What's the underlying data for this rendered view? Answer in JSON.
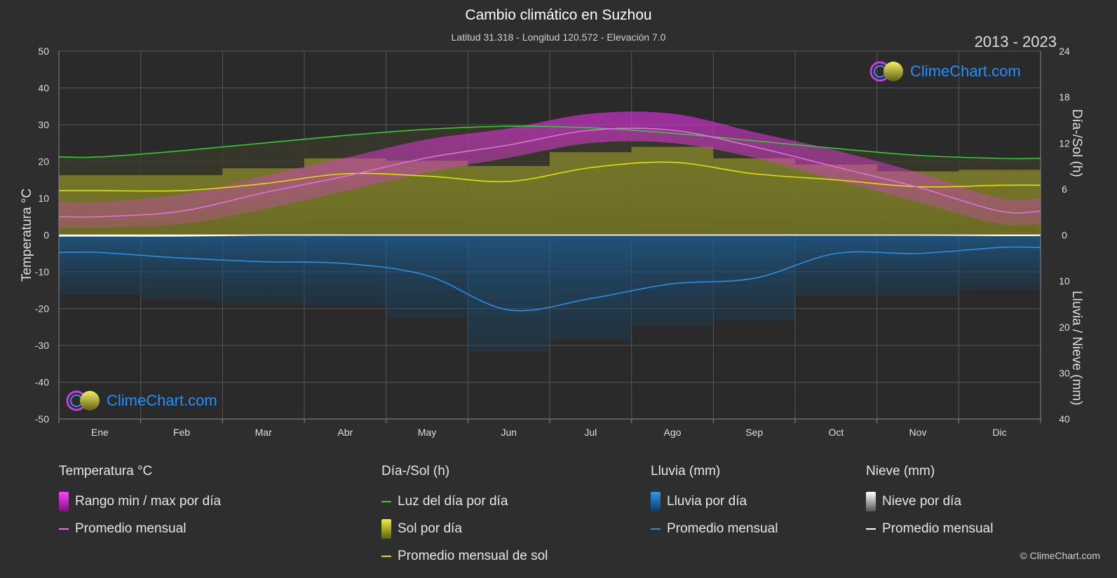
{
  "header": {
    "title": "Cambio climático en Suzhou",
    "subtitle": "Latitud 31.318 - Longitud 120.572 - Elevación 7.0",
    "years": "2013 - 2023"
  },
  "brand": {
    "logo_text": "ClimeChart.com",
    "copyright": "© ClimeChart.com"
  },
  "chart_data": {
    "type": "area",
    "categories": [
      "Ene",
      "Feb",
      "Mar",
      "Abr",
      "May",
      "Jun",
      "Jul",
      "Ago",
      "Sep",
      "Oct",
      "Nov",
      "Dic"
    ],
    "left_axis": {
      "label": "Temperatura °C",
      "range": [
        -50,
        50
      ],
      "ticks": [
        50,
        40,
        30,
        20,
        10,
        0,
        -10,
        -20,
        -30,
        -40,
        -50
      ]
    },
    "right_axis_top": {
      "label": "Día-/Sol (h)",
      "range": [
        0,
        24
      ],
      "ticks": [
        24,
        18,
        12,
        6,
        0
      ]
    },
    "right_axis_bottom": {
      "label": "Lluvia / Nieve (mm)",
      "range": [
        0,
        40
      ],
      "ticks": [
        0,
        10,
        20,
        30,
        40
      ]
    },
    "grid": true,
    "series": [
      {
        "name": "Promedio mensual",
        "group": "Temperatura °C",
        "axis": "temperature",
        "color": "#e070e0",
        "values": [
          5.0,
          6.5,
          11.5,
          16.0,
          21.0,
          24.5,
          28.5,
          28.5,
          24.0,
          18.5,
          13.0,
          6.5
        ]
      },
      {
        "name": "Rango min / max por día",
        "group": "Temperatura °C",
        "axis": "temperature",
        "color": "#d020d0",
        "min": [
          2,
          3,
          7,
          12,
          17,
          21,
          25,
          25,
          21,
          15,
          9,
          3
        ],
        "max": [
          9,
          11,
          16,
          21,
          26,
          29,
          33,
          33,
          28,
          23,
          17,
          10
        ]
      },
      {
        "name": "Luz del día por día",
        "group": "Día-/Sol (h)",
        "axis": "daylight",
        "color": "#33cc33",
        "values": [
          10.2,
          11.0,
          12.0,
          13.0,
          13.8,
          14.2,
          14.0,
          13.3,
          12.3,
          11.3,
          10.4,
          10.0
        ]
      },
      {
        "name": "Promedio mensual de sol",
        "group": "Día-/Sol (h)",
        "axis": "daylight",
        "color": "#e0e000",
        "values": [
          5.8,
          5.8,
          6.7,
          8.0,
          7.7,
          7.0,
          8.8,
          9.5,
          8.0,
          7.2,
          6.3,
          6.5
        ]
      },
      {
        "name": "Sol por día",
        "group": "Día-/Sol (h)",
        "axis": "daylight",
        "color": "#9a9a30",
        "values": [
          5.8,
          5.8,
          6.7,
          8.0,
          7.7,
          7.0,
          8.8,
          9.5,
          8.0,
          7.2,
          6.3,
          6.5
        ]
      },
      {
        "name": "Promedio mensual",
        "group": "Lluvia (mm)",
        "axis": "precipitation",
        "color": "#2b8fe0",
        "values": [
          3.8,
          5.0,
          5.8,
          6.2,
          8.8,
          16.3,
          13.8,
          10.6,
          9.4,
          4.0,
          4.0,
          2.7
        ]
      },
      {
        "name": "Lluvia por día",
        "group": "Lluvia (mm)",
        "axis": "precipitation",
        "color": "#1a6aa8",
        "values": [
          3.8,
          5.0,
          5.8,
          6.2,
          8.8,
          16.3,
          13.8,
          10.6,
          9.4,
          4.0,
          4.0,
          2.7
        ]
      },
      {
        "name": "Promedio mensual",
        "group": "Nieve (mm)",
        "axis": "precipitation",
        "color": "#ffffff",
        "values": [
          0.2,
          0.2,
          0,
          0,
          0,
          0,
          0,
          0,
          0,
          0,
          0,
          0.1
        ]
      },
      {
        "name": "Nieve por día",
        "group": "Nieve (mm)",
        "axis": "precipitation",
        "color": "#bbbbbb",
        "values": [
          0.2,
          0.2,
          0,
          0,
          0,
          0,
          0,
          0,
          0,
          0,
          0,
          0.1
        ]
      }
    ]
  },
  "legend": {
    "temperature": {
      "heading": "Temperatura °C",
      "items": [
        "Rango min / max por día",
        "Promedio mensual"
      ]
    },
    "daylight": {
      "heading": "Día-/Sol (h)",
      "items": [
        "Luz del día por día",
        "Sol por día",
        "Promedio mensual de sol"
      ]
    },
    "rain": {
      "heading": "Lluvia (mm)",
      "items": [
        "Lluvia por día",
        "Promedio mensual"
      ]
    },
    "snow": {
      "heading": "Nieve (mm)",
      "items": [
        "Nieve por día",
        "Promedio mensual"
      ]
    }
  }
}
